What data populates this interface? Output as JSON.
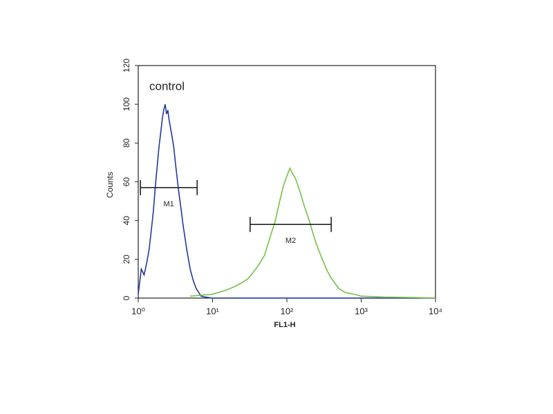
{
  "chart_data": {
    "type": "line",
    "log_x": true,
    "xlabel": "FL1-H",
    "ylabel": "Counts",
    "annotation": "control",
    "xlim": [
      1,
      10000
    ],
    "ylim": [
      0,
      120
    ],
    "xticks": [
      {
        "value": 1,
        "label": "10⁰"
      },
      {
        "value": 10,
        "label": "10¹"
      },
      {
        "value": 100,
        "label": "10²"
      },
      {
        "value": 1000,
        "label": "10³"
      },
      {
        "value": 10000,
        "label": "10⁴"
      }
    ],
    "yticks": [
      0,
      20,
      40,
      60,
      80,
      100,
      120
    ],
    "series": [
      {
        "color": "#23379a",
        "x": [
          1,
          1.1,
          1.2,
          1.3,
          1.4,
          1.5,
          1.6,
          1.7,
          1.8,
          1.9,
          2.0,
          2.1,
          2.2,
          2.3,
          2.4,
          2.5,
          2.6,
          2.8,
          3.0,
          3.2,
          3.5,
          3.8,
          4.0,
          4.5,
          5.0,
          5.5,
          6.0,
          6.5,
          7,
          8,
          10,
          100,
          1000,
          10000
        ],
        "values": [
          2,
          15,
          12,
          18,
          25,
          35,
          45,
          58,
          68,
          78,
          85,
          92,
          97,
          100,
          95,
          97,
          92,
          85,
          78,
          68,
          55,
          45,
          38,
          25,
          15,
          9,
          5,
          3,
          1,
          0.5,
          0,
          0,
          0,
          0
        ]
      },
      {
        "color": "#74c048",
        "x": [
          5,
          10,
          15,
          20,
          25,
          30,
          40,
          50,
          60,
          70,
          80,
          90,
          100,
          110,
          120,
          130,
          150,
          170,
          200,
          230,
          260,
          300,
          350,
          400,
          500,
          600,
          800,
          1000,
          2000,
          5000,
          10000
        ],
        "values": [
          1,
          2,
          4,
          6,
          8,
          10,
          16,
          22,
          32,
          40,
          50,
          58,
          63,
          67,
          64,
          62,
          55,
          48,
          40,
          32,
          26,
          20,
          14,
          10,
          5,
          3,
          2,
          1,
          0.5,
          0.3,
          0
        ]
      }
    ],
    "markers": [
      {
        "label": "M1",
        "range": [
          1.07,
          6.2
        ],
        "y": 57
      },
      {
        "label": "M2",
        "range": [
          32,
          395
        ],
        "y": 38
      }
    ]
  }
}
